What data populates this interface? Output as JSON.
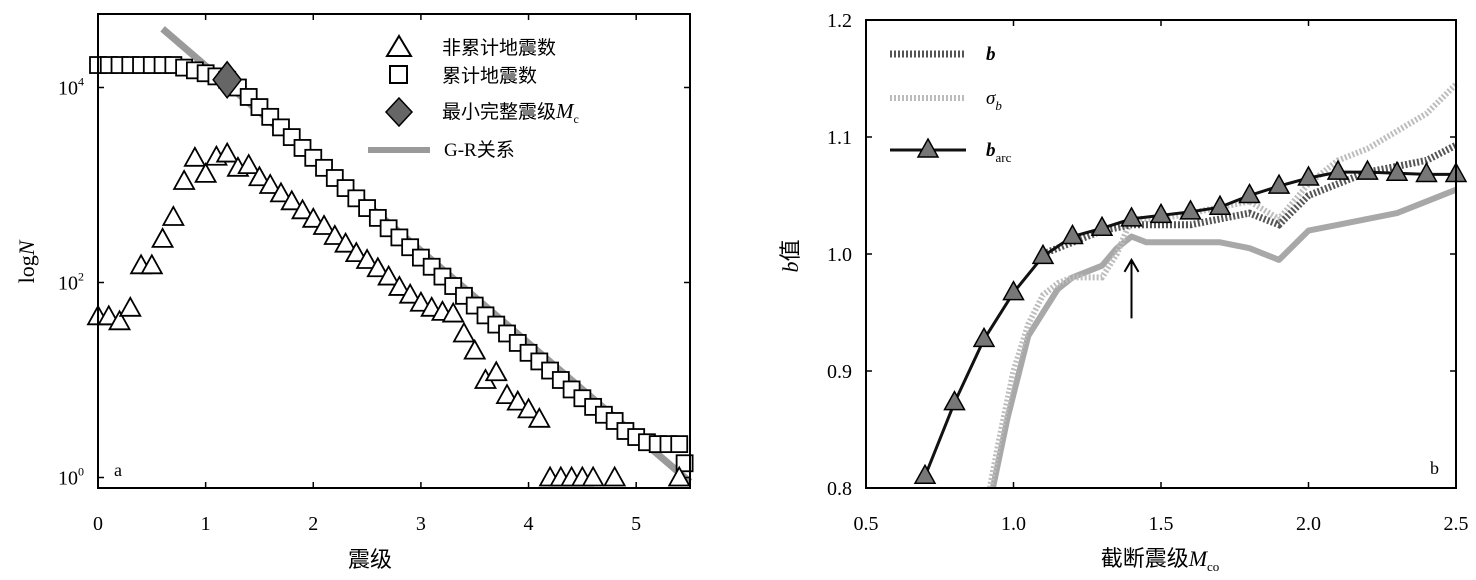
{
  "chart_data": [
    {
      "panel_label": "a",
      "type": "scatter",
      "xlabel": "震级",
      "ylabel": "logN",
      "yscale": "log",
      "xlim": [
        0,
        5.5
      ],
      "ylim": [
        0.8,
        30000
      ],
      "xticks": [
        "0",
        "1",
        "2",
        "3",
        "4",
        "5"
      ],
      "yticks": [
        {
          "value": 1,
          "base": "10",
          "exp": "0"
        },
        {
          "value": 100,
          "base": "10",
          "exp": "2"
        },
        {
          "value": 10000,
          "base": "10",
          "exp": "4"
        }
      ],
      "legend": {
        "position": "top-right",
        "entries": [
          {
            "label": "非累计地震数",
            "marker": "triangle"
          },
          {
            "label": "累计地震数",
            "marker": "square"
          },
          {
            "label": "最小完整震级",
            "label_sub": "M",
            "label_sub_index": "c",
            "marker": "diamond"
          },
          {
            "label": "G-R关系",
            "marker": "line"
          }
        ]
      },
      "series": [
        {
          "name": "非累计地震数",
          "marker": "triangle",
          "points": [
            [
              0.0,
              45
            ],
            [
              0.1,
              45
            ],
            [
              0.2,
              40
            ],
            [
              0.3,
              55
            ],
            [
              0.4,
              150
            ],
            [
              0.5,
              150
            ],
            [
              0.6,
              280
            ],
            [
              0.7,
              470
            ],
            [
              0.8,
              1100
            ],
            [
              0.9,
              1900
            ],
            [
              1.0,
              1300
            ],
            [
              1.1,
              1950
            ],
            [
              1.2,
              2100
            ],
            [
              1.3,
              1500
            ],
            [
              1.4,
              1600
            ],
            [
              1.5,
              1200
            ],
            [
              1.6,
              1000
            ],
            [
              1.7,
              820
            ],
            [
              1.8,
              680
            ],
            [
              1.9,
              550
            ],
            [
              2.0,
              450
            ],
            [
              2.1,
              380
            ],
            [
              2.2,
              300
            ],
            [
              2.3,
              250
            ],
            [
              2.4,
              200
            ],
            [
              2.5,
              170
            ],
            [
              2.6,
              140
            ],
            [
              2.7,
              115
            ],
            [
              2.8,
              90
            ],
            [
              2.9,
              75
            ],
            [
              3.0,
              62
            ],
            [
              3.1,
              55
            ],
            [
              3.2,
              50
            ],
            [
              3.3,
              48
            ],
            [
              3.4,
              30
            ],
            [
              3.5,
              20
            ],
            [
              3.6,
              10
            ],
            [
              3.7,
              12
            ],
            [
              3.8,
              7
            ],
            [
              3.9,
              6
            ],
            [
              4.0,
              5
            ],
            [
              4.1,
              4
            ],
            [
              4.2,
              1
            ],
            [
              4.3,
              1
            ],
            [
              4.4,
              1
            ],
            [
              4.5,
              1
            ],
            [
              4.6,
              1
            ],
            [
              4.8,
              1
            ],
            [
              5.4,
              1
            ]
          ]
        },
        {
          "name": "累计地震数",
          "marker": "square",
          "points": [
            [
              0.0,
              17000
            ],
            [
              0.1,
              17000
            ],
            [
              0.2,
              17000
            ],
            [
              0.3,
              17000
            ],
            [
              0.4,
              17000
            ],
            [
              0.5,
              17000
            ],
            [
              0.6,
              17000
            ],
            [
              0.7,
              17000
            ],
            [
              0.8,
              16000
            ],
            [
              0.9,
              15000
            ],
            [
              1.0,
              14000
            ],
            [
              1.1,
              13000
            ],
            [
              1.2,
              12000
            ],
            [
              1.3,
              10000
            ],
            [
              1.4,
              8000
            ],
            [
              1.5,
              6300
            ],
            [
              1.6,
              5000
            ],
            [
              1.7,
              3900
            ],
            [
              1.8,
              3100
            ],
            [
              1.9,
              2400
            ],
            [
              2.0,
              1900
            ],
            [
              2.1,
              1500
            ],
            [
              2.2,
              1180
            ],
            [
              2.3,
              930
            ],
            [
              2.4,
              730
            ],
            [
              2.5,
              580
            ],
            [
              2.6,
              460
            ],
            [
              2.7,
              360
            ],
            [
              2.8,
              290
            ],
            [
              2.9,
              230
            ],
            [
              3.0,
              180
            ],
            [
              3.1,
              145
            ],
            [
              3.2,
              115
            ],
            [
              3.3,
              92
            ],
            [
              3.4,
              73
            ],
            [
              3.5,
              58
            ],
            [
              3.6,
              46
            ],
            [
              3.7,
              37
            ],
            [
              3.8,
              30
            ],
            [
              3.9,
              24
            ],
            [
              4.0,
              19
            ],
            [
              4.1,
              15.5
            ],
            [
              4.2,
              12.5
            ],
            [
              4.3,
              10
            ],
            [
              4.4,
              8
            ],
            [
              4.5,
              6.5
            ],
            [
              4.6,
              5.3
            ],
            [
              4.7,
              4.4
            ],
            [
              4.8,
              3.8
            ],
            [
              4.9,
              3
            ],
            [
              5.0,
              2.6
            ],
            [
              5.1,
              2.3
            ],
            [
              5.2,
              2.2
            ],
            [
              5.3,
              2.2
            ],
            [
              5.4,
              2.2
            ],
            [
              5.45,
              1.4
            ]
          ]
        },
        {
          "name": "最小完整震级",
          "marker": "diamond",
          "points": [
            [
              1.2,
              12000
            ]
          ]
        },
        {
          "name": "G-R关系",
          "type": "line",
          "points": [
            [
              0.6,
              40000
            ],
            [
              5.5,
              0.9
            ]
          ]
        }
      ]
    },
    {
      "panel_label": "b",
      "type": "line",
      "xlabel": "截断震级",
      "xlabel_sub": "M",
      "xlabel_sub_index": "co",
      "ylabel": "b值",
      "ylabel_italic_part": "b",
      "ylabel_rest": "值",
      "xlim": [
        0.5,
        2.5
      ],
      "ylim": [
        0.8,
        1.2
      ],
      "xticks": [
        "0.5",
        "1.0",
        "1.5",
        "2.0",
        "2.5"
      ],
      "yticks": [
        "0.8",
        "0.9",
        "1.0",
        "1.1",
        "1.2"
      ],
      "annotation": {
        "type": "arrow",
        "x": 1.4,
        "y_from": 0.945,
        "y_to": 0.995
      },
      "legend": {
        "position": "top-left",
        "entries": [
          {
            "label": "b",
            "style": "dotted-dark"
          },
          {
            "label": "σ",
            "sub": "b",
            "style": "dotted-light"
          },
          {
            "label": "b",
            "sub": "arc",
            "style": "solid-triangle"
          }
        ]
      },
      "series": [
        {
          "name": "b",
          "points": [
            [
              1.1,
              1.0
            ],
            [
              1.2,
              1.01
            ],
            [
              1.3,
              1.02
            ],
            [
              1.4,
              1.025
            ],
            [
              1.5,
              1.025
            ],
            [
              1.6,
              1.025
            ],
            [
              1.7,
              1.03
            ],
            [
              1.8,
              1.035
            ],
            [
              1.9,
              1.025
            ],
            [
              2.0,
              1.05
            ],
            [
              2.1,
              1.06
            ],
            [
              2.2,
              1.07
            ],
            [
              2.3,
              1.075
            ],
            [
              2.4,
              1.08
            ],
            [
              2.5,
              1.093
            ]
          ]
        },
        {
          "name": "σb",
          "points": [
            [
              0.92,
              0.8
            ],
            [
              0.95,
              0.84
            ],
            [
              1.0,
              0.9
            ],
            [
              1.05,
              0.94
            ],
            [
              1.1,
              0.965
            ],
            [
              1.15,
              0.975
            ],
            [
              1.2,
              0.98
            ],
            [
              1.3,
              0.98
            ],
            [
              1.35,
              1.0
            ],
            [
              1.4,
              1.03
            ],
            [
              1.5,
              1.03
            ],
            [
              1.6,
              1.035
            ],
            [
              1.7,
              1.04
            ],
            [
              1.8,
              1.045
            ],
            [
              1.9,
              1.03
            ],
            [
              2.0,
              1.06
            ],
            [
              2.1,
              1.08
            ],
            [
              2.2,
              1.09
            ],
            [
              2.3,
              1.105
            ],
            [
              2.4,
              1.12
            ],
            [
              2.5,
              1.145
            ]
          ]
        },
        {
          "name": "b-arc-lower",
          "points": [
            [
              0.93,
              0.8
            ],
            [
              0.98,
              0.86
            ],
            [
              1.05,
              0.93
            ],
            [
              1.15,
              0.97
            ],
            [
              1.2,
              0.98
            ],
            [
              1.3,
              0.99
            ],
            [
              1.35,
              1.005
            ],
            [
              1.4,
              1.015
            ],
            [
              1.45,
              1.01
            ],
            [
              1.5,
              1.01
            ],
            [
              1.6,
              1.01
            ],
            [
              1.7,
              1.01
            ],
            [
              1.8,
              1.005
            ],
            [
              1.9,
              0.995
            ],
            [
              2.0,
              1.02
            ],
            [
              2.1,
              1.025
            ],
            [
              2.2,
              1.03
            ],
            [
              2.3,
              1.035
            ],
            [
              2.4,
              1.045
            ],
            [
              2.5,
              1.055
            ]
          ]
        },
        {
          "name": "b_arc",
          "marker": "triangle",
          "points": [
            [
              0.7,
              0.81
            ],
            [
              0.8,
              0.873
            ],
            [
              0.9,
              0.927
            ],
            [
              1.0,
              0.967
            ],
            [
              1.1,
              0.998
            ],
            [
              1.2,
              1.015
            ],
            [
              1.3,
              1.022
            ],
            [
              1.4,
              1.03
            ],
            [
              1.5,
              1.033
            ],
            [
              1.6,
              1.036
            ],
            [
              1.7,
              1.04
            ],
            [
              1.8,
              1.05
            ],
            [
              1.9,
              1.058
            ],
            [
              2.0,
              1.065
            ],
            [
              2.1,
              1.07
            ],
            [
              2.2,
              1.07
            ],
            [
              2.3,
              1.069
            ],
            [
              2.4,
              1.068
            ],
            [
              2.5,
              1.068
            ]
          ]
        }
      ]
    }
  ]
}
